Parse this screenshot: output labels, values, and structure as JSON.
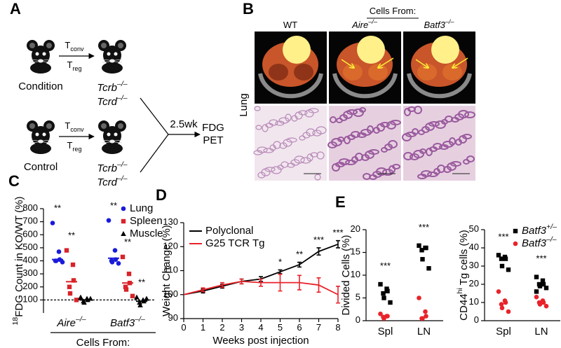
{
  "panel_a": {
    "label": "A",
    "rows": [
      {
        "name": "Condition",
        "transfer_top": "Tconv",
        "transfer_bottom": "Treg",
        "recipient": [
          "Tcrb–/–",
          "Tcrd–/–"
        ]
      },
      {
        "name": "Control",
        "transfer_top": "Tconv",
        "transfer_bottom": "Treg",
        "recipient": [
          "Tcrb–/–",
          "Tcrd–/–"
        ]
      }
    ],
    "interval": "2.5wk",
    "readout": [
      "FDG",
      "PET"
    ]
  },
  "panel_b": {
    "label": "B",
    "header": "Cells From:",
    "columns": [
      "WT",
      "Aire–/–",
      "Batf3–/–"
    ],
    "row_label": "Lung"
  },
  "chart_data": [
    {
      "type": "dot",
      "panel": "C",
      "ylabel": "18FDG Count in KO/WT (%)",
      "xlabel": "Cells From:",
      "categories": [
        "Aire–/–",
        "Batf3–/–"
      ],
      "ylim": [
        0,
        800
      ],
      "yticks": [
        100,
        200,
        300,
        400,
        500,
        600,
        700,
        800
      ],
      "reference_line": 100,
      "legend": "upper right",
      "series": [
        {
          "name": "Lung",
          "color": "#1a1adb",
          "marker": "circle",
          "values": [
            [
              690,
              470,
              410,
              400,
              400,
              390
            ],
            [
              710,
              480,
              410,
              400,
              390,
              380
            ]
          ],
          "means": [
            410,
            420
          ],
          "significance": [
            "**",
            "**"
          ]
        },
        {
          "name": "Spleen",
          "color": "#d8232a",
          "marker": "square",
          "values": [
            [
              480,
              370,
              250,
              200,
              150,
              100
            ],
            [
              430,
              300,
              230,
              200,
              180,
              130
            ]
          ],
          "means": [
            240,
            230
          ],
          "significance": [
            "**",
            "**"
          ]
        },
        {
          "name": "Muscle",
          "color": "#000000",
          "marker": "triangle",
          "values": [
            [
              120,
              110,
              100,
              90,
              80,
              110
            ],
            [
              120,
              100,
              90,
              80,
              60,
              110
            ]
          ],
          "means": [
            100,
            90
          ],
          "significance": [
            null,
            "**"
          ]
        }
      ]
    },
    {
      "type": "line",
      "panel": "D",
      "ylabel": "Weight Change (%)",
      "xlabel": "Weeks post injection",
      "x": [
        0,
        1,
        2,
        3,
        4,
        5,
        6,
        7,
        8
      ],
      "xlim": [
        0,
        8
      ],
      "xticks": [
        0,
        1,
        2,
        3,
        4,
        5,
        6,
        7,
        8
      ],
      "ylim": [
        90,
        130
      ],
      "yticks": [
        90,
        100,
        110,
        120,
        130
      ],
      "legend": "upper left",
      "significance": [
        null,
        null,
        null,
        null,
        null,
        "*",
        "**",
        "***",
        "***"
      ],
      "series": [
        {
          "name": "Polyclonal",
          "color": "#000000",
          "values": [
            100,
            101.5,
            103.5,
            105.5,
            106.5,
            109.5,
            112.5,
            118,
            121
          ],
          "errors": [
            0,
            0.8,
            0.8,
            1,
            1,
            0.8,
            1,
            1.5,
            1.5
          ]
        },
        {
          "name": "G25 TCR Tg",
          "color": "#e8232a",
          "values": [
            100,
            102,
            104,
            105.5,
            105,
            105,
            105,
            104,
            100
          ],
          "errors": [
            0,
            0.8,
            1,
            1,
            1.5,
            3.5,
            3,
            3,
            3.5
          ]
        }
      ]
    },
    {
      "type": "dot",
      "panel": "E",
      "ylabel": "Divided Cells (%)",
      "categories": [
        "Spl",
        "LN"
      ],
      "ylim": [
        0,
        20
      ],
      "yticks": [
        0,
        5,
        10,
        15,
        20
      ],
      "significance": [
        "***",
        "***"
      ],
      "series": [
        {
          "name": "Batf3+/–",
          "color": "#000000",
          "marker": "square",
          "values": [
            [
              8,
              7,
              6.5,
              6,
              5,
              4
            ],
            [
              16.5,
              16,
              16,
              15.5,
              13.5,
              11.5
            ]
          ]
        },
        {
          "name": "Batf3–/–",
          "color": "#e8232a",
          "marker": "circle",
          "values": [
            [
              1.5,
              1,
              1,
              0.8,
              0.5
            ],
            [
              5,
              2,
              1,
              0.5,
              0.5
            ]
          ]
        }
      ]
    },
    {
      "type": "dot",
      "ylabel": "CD44hi Tg cells (%)",
      "categories": [
        "Spl",
        "LN"
      ],
      "ylim": [
        0,
        50
      ],
      "yticks": [
        0,
        10,
        20,
        30,
        40,
        50
      ],
      "significance": [
        "***",
        "***"
      ],
      "legend": "upper right",
      "series": [
        {
          "name": "Batf3+/–",
          "color": "#000000",
          "marker": "square",
          "values": [
            [
              36,
              35,
              34,
              34,
              30,
              28
            ],
            [
              24,
              22,
              20,
              20,
              19,
              18,
              16
            ]
          ]
        },
        {
          "name": "Batf3–/–",
          "color": "#e8232a",
          "marker": "circle",
          "values": [
            [
              16,
              11,
              10,
              9,
              7,
              5
            ],
            [
              13,
              11,
              10,
              10,
              9,
              8
            ]
          ]
        }
      ]
    }
  ]
}
